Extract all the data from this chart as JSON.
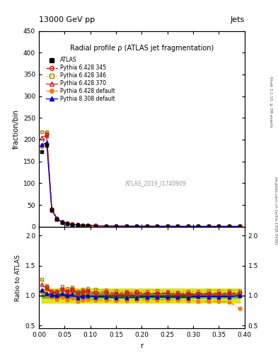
{
  "title": "Radial profile ρ (ATLAS jet fragmentation)",
  "header_left": "13000 GeV pp",
  "header_right": "Jets",
  "xlabel": "r",
  "ylabel_main": "fraction/bin",
  "ylabel_ratio": "Ratio to ATLAS",
  "right_label": "Rivet 3.1.10, ≥ 3M events",
  "right_label2": "mcplots.cern.ch [arXiv:1306.3436]",
  "watermark": "ATLAS_2019_I1740909",
  "r_values": [
    0.005,
    0.015,
    0.025,
    0.035,
    0.045,
    0.055,
    0.065,
    0.075,
    0.085,
    0.095,
    0.11,
    0.13,
    0.15,
    0.17,
    0.19,
    0.21,
    0.23,
    0.25,
    0.27,
    0.29,
    0.31,
    0.33,
    0.35,
    0.37,
    0.39
  ],
  "atlas_values": [
    172,
    187,
    38,
    18,
    10,
    7,
    5,
    4,
    3,
    2.5,
    2.0,
    1.6,
    1.3,
    1.1,
    0.95,
    0.85,
    0.75,
    0.7,
    0.65,
    0.6,
    0.55,
    0.52,
    0.5,
    0.48,
    0.46
  ],
  "p6_345_values": [
    185,
    213,
    40,
    19,
    11,
    7.5,
    5.5,
    4.2,
    3.2,
    2.7,
    2.1,
    1.7,
    1.35,
    1.15,
    1.0,
    0.88,
    0.78,
    0.73,
    0.67,
    0.62,
    0.57,
    0.54,
    0.52,
    0.5,
    0.48
  ],
  "p6_346_values": [
    218,
    218,
    41,
    19.5,
    11.5,
    7.8,
    5.7,
    4.3,
    3.3,
    2.8,
    2.2,
    1.75,
    1.4,
    1.18,
    1.02,
    0.91,
    0.81,
    0.75,
    0.69,
    0.64,
    0.59,
    0.56,
    0.54,
    0.52,
    0.5
  ],
  "p6_370_values": [
    205,
    210,
    39.5,
    18.8,
    11.0,
    7.4,
    5.4,
    4.1,
    3.15,
    2.65,
    2.05,
    1.65,
    1.32,
    1.12,
    0.97,
    0.87,
    0.77,
    0.72,
    0.66,
    0.61,
    0.56,
    0.53,
    0.51,
    0.49,
    0.47
  ],
  "p6_default_values": [
    185,
    190,
    37.0,
    17.0,
    9.8,
    6.5,
    4.8,
    3.6,
    2.8,
    2.35,
    1.85,
    1.48,
    1.19,
    1.01,
    0.88,
    0.79,
    0.7,
    0.65,
    0.6,
    0.55,
    0.5,
    0.47,
    0.45,
    0.43,
    0.36
  ],
  "p8_default_values": [
    188,
    193,
    38.2,
    18.0,
    10.4,
    7.0,
    5.1,
    3.85,
    2.95,
    2.5,
    1.95,
    1.56,
    1.25,
    1.06,
    0.92,
    0.83,
    0.73,
    0.68,
    0.63,
    0.58,
    0.54,
    0.51,
    0.49,
    0.47,
    0.46
  ],
  "green_band_low": 0.96,
  "green_band_high": 1.04,
  "yellow_band_low": 0.88,
  "yellow_band_high": 1.12,
  "color_atlas": "#000000",
  "color_p6_345": "#cc0000",
  "color_p6_346": "#aa8800",
  "color_p6_370": "#cc2222",
  "color_p6_default": "#ff7700",
  "color_p8_default": "#0000cc",
  "color_green_band": "#44bb44",
  "color_yellow_band": "#dddd00",
  "ylim_main": [
    0,
    450
  ],
  "ylim_ratio": [
    0.45,
    2.15
  ],
  "xlim": [
    0.0,
    0.4
  ],
  "yticks_main": [
    0,
    50,
    100,
    150,
    200,
    250,
    300,
    350,
    400,
    450
  ],
  "yticks_ratio": [
    0.5,
    1.0,
    1.5,
    2.0
  ]
}
